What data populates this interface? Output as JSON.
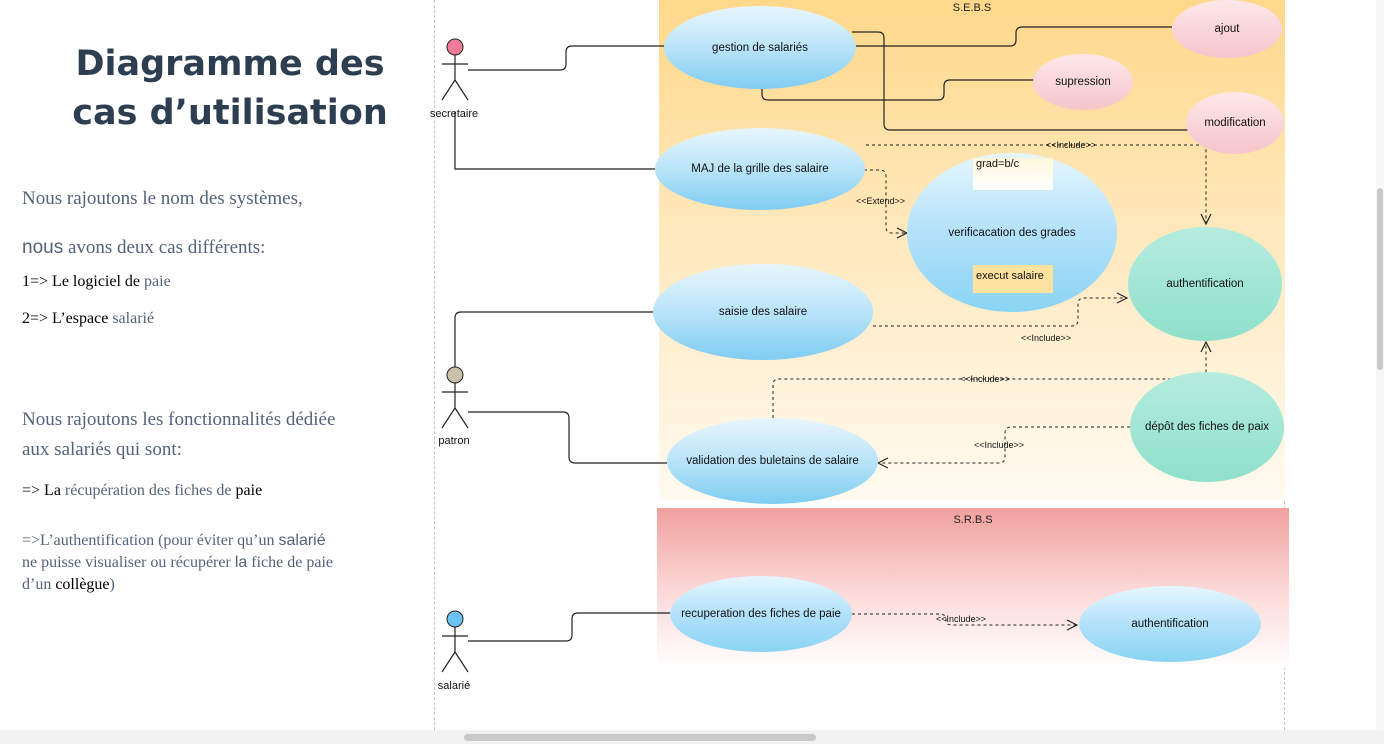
{
  "slide": {
    "title_line1": "Diagramme des",
    "title_line2": "cas d’utilisation",
    "p1": "Nous rajoutons le nom des systèmes,",
    "p2_a": "nous",
    "p2_b": " avons deux cas différents:",
    "p3_a": "1=>  Le logiciel de ",
    "p3_b": "paie",
    "p4_a": "2=>  L’espace ",
    "p4_b": "salarié",
    "p5": "Nous rajoutons les fonctionnalités  dédiée",
    "p6": " aux salariés qui sont:",
    "p7_a": "=>  La ",
    "p7_b": "récupération des fiches de ",
    "p7_c": "paie",
    "p8_a": "=>L’authentification (pour éviter qu’un  ",
    "p8_b": "salarié",
    "p9_a": "ne puisse visualiser ou récupérer  ",
    "p9_b": "la",
    "p9_c": " fiche de paie",
    "p10_a": "d’un ",
    "p10_b": "collègue",
    "p10_c": ")"
  },
  "systems": {
    "sebs": "S.E.B.S",
    "srbs": "S.R.B.S"
  },
  "actors": {
    "secretaire": "secretaire",
    "patron": "patron",
    "salarie": "salarié"
  },
  "usecases": {
    "gestion": "gestion de salariés",
    "ajout": "ajout",
    "supression": "supression",
    "modification": "modification",
    "maj": "MAJ de la grille des salaire",
    "verif": "verificacation des grades",
    "authentification": "authentification",
    "saisie": "saisie des salaire",
    "depot": "dépôt des fiches de paix",
    "validation": "validation des buletains de salaire",
    "recuperation": "recuperation des fiches de paie",
    "authentification2": "authentification"
  },
  "notes": {
    "grad": "grad=b/c",
    "execut": "execut salaire"
  },
  "relations": {
    "include1": "<<Include>>",
    "extend": "<<Extend>>",
    "include2": "<<Include>>",
    "include3": "<<Include>>",
    "include4": "<<Include>>",
    "include5": "<<Include>>"
  },
  "colors": {
    "sebs_top": "#ffd88a",
    "sebs_bottom": "#fffaf0",
    "srbs_top": "#f0a09d",
    "srbs_bottom": "#ffffff",
    "secretaire_head": "#f27b9a",
    "patron_head": "#c9c2a8",
    "salarie_head": "#6cc3ef"
  }
}
